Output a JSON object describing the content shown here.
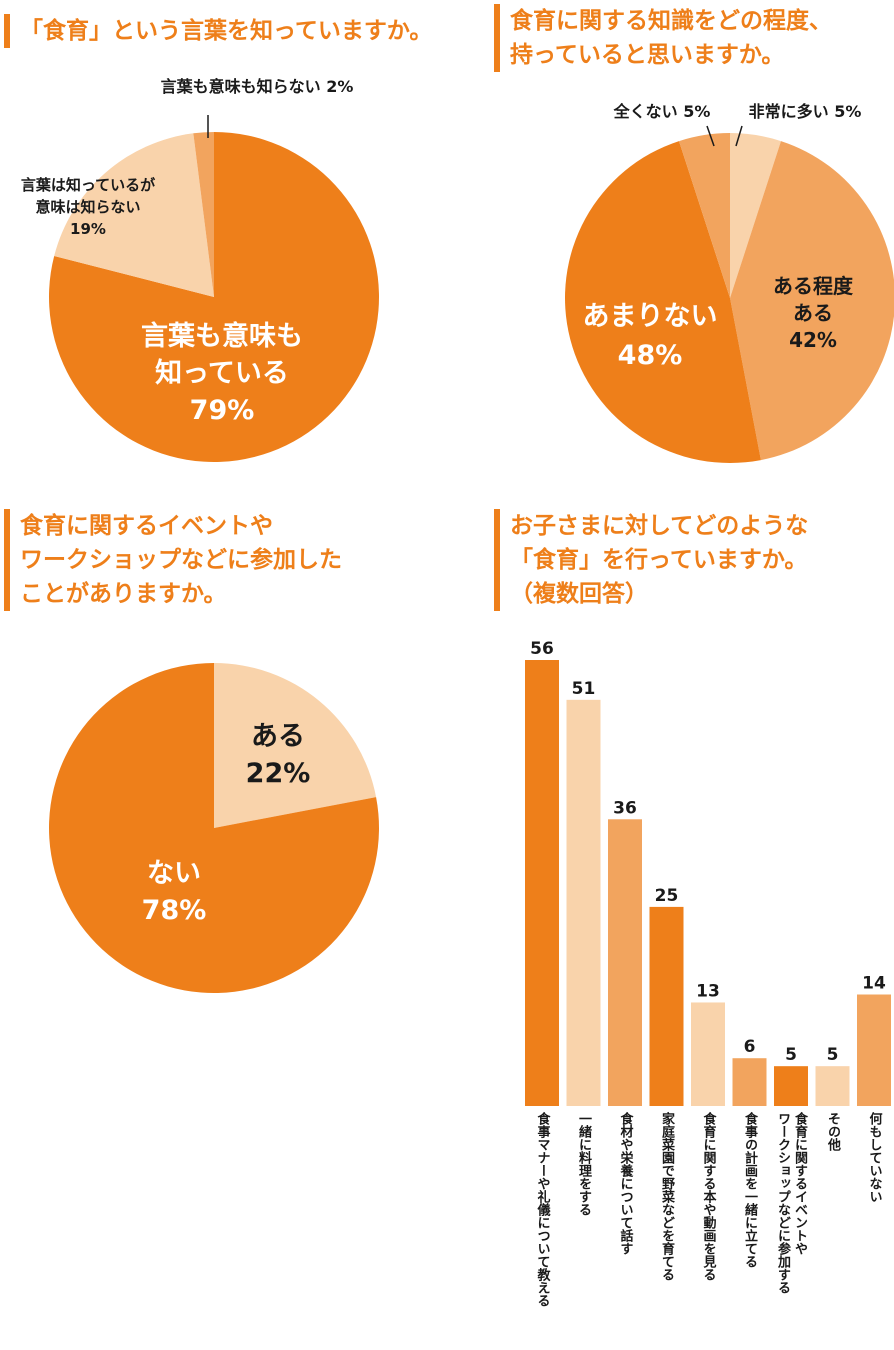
{
  "colors": {
    "accent": "#ee7f1a",
    "dark": "#ee7f1a",
    "mid": "#f2a45e",
    "light": "#f9d3ab",
    "text": "#1a1a1a"
  },
  "titles": {
    "q1": [
      "「食育」という言葉を知っていますか。"
    ],
    "q2": [
      "食育に関する知識をどの程度、",
      "持っていると思いますか。"
    ],
    "q3": [
      "食育に関するイベントや",
      "ワークショップなどに参加した",
      "ことがありますか。"
    ],
    "q4": [
      "お子さまに対してどのような",
      "「食育」を行っていますか。",
      "（複数回答）"
    ]
  },
  "chart_data": [
    {
      "type": "pie",
      "title": "「食育」という言葉を知っていますか。",
      "slices": [
        {
          "label": "言葉も意味も知っている",
          "display": [
            "言葉も意味も",
            "知っている",
            "79%"
          ],
          "value": 79,
          "color": "#ee7f1a"
        },
        {
          "label": "言葉は知っているが意味は知らない",
          "display": [
            "言葉は知っているが",
            "意味は知らない",
            "19%"
          ],
          "value": 19,
          "color": "#f9d3ab"
        },
        {
          "label": "言葉も意味も知らない",
          "display": [
            "言葉も意味も知らない 2%"
          ],
          "value": 2,
          "color": "#f2a45e"
        }
      ]
    },
    {
      "type": "pie",
      "title": "食育に関する知識をどの程度、持っていると思いますか。",
      "slices": [
        {
          "label": "非常に多い",
          "display": [
            "非常に多い 5%"
          ],
          "value": 5,
          "color": "#f9d3ab"
        },
        {
          "label": "ある程度ある",
          "display": [
            "ある程度",
            "ある",
            "42%"
          ],
          "value": 42,
          "color": "#f2a45e"
        },
        {
          "label": "あまりない",
          "display": [
            "あまりない",
            "48%"
          ],
          "value": 48,
          "color": "#ee7f1a"
        },
        {
          "label": "全くない",
          "display": [
            "全くない 5%"
          ],
          "value": 5,
          "color": "#f2a45e"
        }
      ]
    },
    {
      "type": "pie",
      "title": "食育に関するイベントやワークショップなどに参加したことがありますか。",
      "slices": [
        {
          "label": "ある",
          "display": [
            "ある",
            "22%"
          ],
          "value": 22,
          "color": "#f9d3ab"
        },
        {
          "label": "ない",
          "display": [
            "ない",
            "78%"
          ],
          "value": 78,
          "color": "#ee7f1a"
        }
      ]
    },
    {
      "type": "bar",
      "title": "お子さまに対してどのような「食育」を行っていますか。（複数回答）",
      "categories": [
        "食事マナーや礼儀について教える",
        "一緒に料理をする",
        "食材や栄養について話す",
        "家庭菜園で野菜などを育てる",
        "食育に関する本や動画を見る",
        "食事の計画を一緒に立てる",
        "食育に関するイベントや\nワークショップなどに参加する",
        "その他",
        "何もしていない"
      ],
      "values": [
        56,
        51,
        36,
        25,
        13,
        6,
        5,
        5,
        14
      ],
      "colors": [
        "#ee7f1a",
        "#f9d3ab",
        "#f2a45e",
        "#ee7f1a",
        "#f9d3ab",
        "#f2a45e",
        "#ee7f1a",
        "#f9d3ab",
        "#f2a45e"
      ],
      "ylim": [
        0,
        56
      ]
    }
  ]
}
